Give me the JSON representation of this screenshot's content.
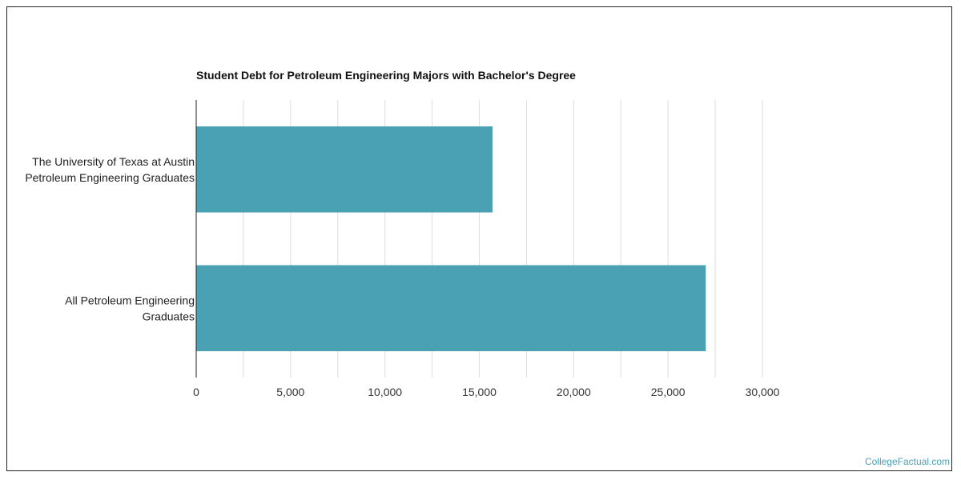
{
  "chart_data": {
    "type": "bar",
    "orientation": "horizontal",
    "title": "Student Debt for Petroleum Engineering Majors with Bachelor's Degree",
    "categories": [
      [
        "The University of Texas at Austin",
        "Petroleum Engineering Graduates"
      ],
      [
        "All Petroleum Engineering",
        "Graduates"
      ]
    ],
    "values": [
      15700,
      27000
    ],
    "xlim": [
      0,
      30000
    ],
    "xticks": [
      0,
      5000,
      10000,
      15000,
      20000,
      25000,
      30000
    ],
    "xtick_labels": [
      "0",
      "5,000",
      "10,000",
      "15,000",
      "20,000",
      "25,000",
      "30,000"
    ],
    "minor_gridlines": true,
    "bar_color": "#4aa1b4",
    "grid_color": "#dddddd",
    "legend": "none"
  },
  "footer": {
    "credit": "CollegeFactual.com"
  }
}
